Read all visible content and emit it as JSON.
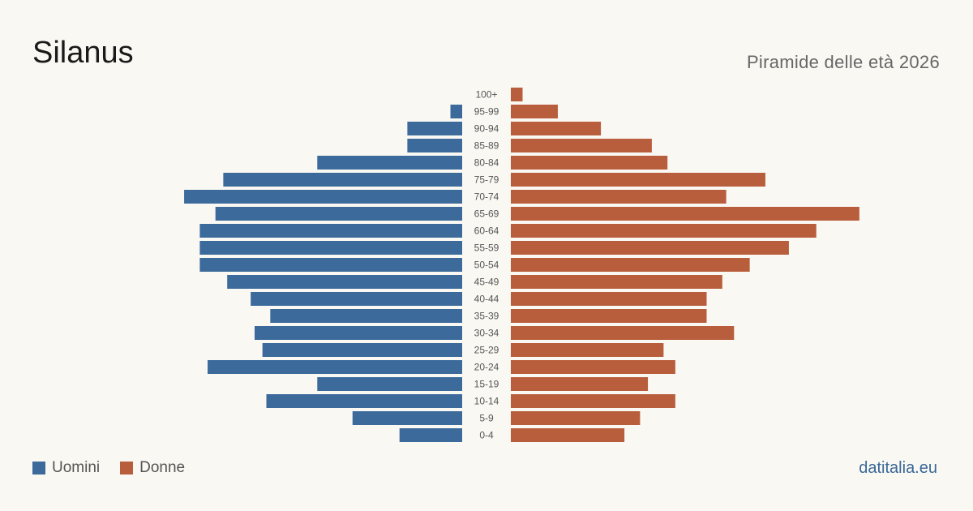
{
  "header": {
    "title": "Silanus",
    "subtitle": "Piramide delle età 2026"
  },
  "legend": {
    "men_label": "Uomini",
    "women_label": "Donne"
  },
  "brand": "datitalia.eu",
  "colors": {
    "men": "#3b6a9b",
    "women": "#b95e3c",
    "background": "#faf8f3"
  },
  "chart_data": {
    "type": "bar",
    "orientation": "horizontal-pyramid",
    "categories": [
      "100+",
      "95-99",
      "90-94",
      "85-89",
      "80-84",
      "75-79",
      "70-74",
      "65-69",
      "60-64",
      "55-59",
      "50-54",
      "45-49",
      "40-44",
      "35-39",
      "30-34",
      "25-29",
      "20-24",
      "15-19",
      "10-14",
      "5-9",
      "0-4"
    ],
    "series": [
      {
        "name": "Uomini",
        "values": [
          0,
          3,
          14,
          14,
          37,
          61,
          71,
          63,
          67,
          67,
          67,
          60,
          54,
          49,
          53,
          51,
          65,
          37,
          50,
          28,
          16
        ]
      },
      {
        "name": "Donne",
        "values": [
          3,
          12,
          23,
          36,
          40,
          65,
          55,
          89,
          78,
          71,
          61,
          54,
          50,
          50,
          57,
          39,
          42,
          35,
          42,
          33,
          29
        ]
      }
    ],
    "legend_position": "bottom-left",
    "grid": false
  }
}
